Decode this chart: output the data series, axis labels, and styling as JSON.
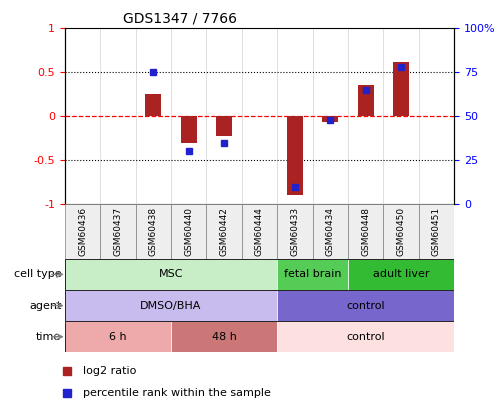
{
  "title": "GDS1347 / 7766",
  "samples": [
    "GSM60436",
    "GSM60437",
    "GSM60438",
    "GSM60440",
    "GSM60442",
    "GSM60444",
    "GSM60433",
    "GSM60434",
    "GSM60448",
    "GSM60450",
    "GSM60451"
  ],
  "log2_ratio": [
    0,
    0,
    0.25,
    -0.3,
    -0.22,
    0,
    -0.9,
    -0.07,
    0.35,
    0.62,
    0
  ],
  "percentile_rank": [
    null,
    null,
    75,
    30,
    35,
    null,
    10,
    48,
    65,
    78,
    null
  ],
  "cell_type_groups": [
    {
      "label": "MSC",
      "start": 0,
      "end": 5,
      "color": "#c8eec8"
    },
    {
      "label": "fetal brain",
      "start": 6,
      "end": 7,
      "color": "#55cc55"
    },
    {
      "label": "adult liver",
      "start": 8,
      "end": 10,
      "color": "#33bb33"
    }
  ],
  "agent_groups": [
    {
      "label": "DMSO/BHA",
      "start": 0,
      "end": 5,
      "color": "#c8bbee"
    },
    {
      "label": "control",
      "start": 6,
      "end": 10,
      "color": "#7766cc"
    }
  ],
  "time_groups": [
    {
      "label": "6 h",
      "start": 0,
      "end": 2,
      "color": "#eeaaaa"
    },
    {
      "label": "48 h",
      "start": 3,
      "end": 5,
      "color": "#cc7777"
    },
    {
      "label": "control",
      "start": 6,
      "end": 10,
      "color": "#fde0e0"
    }
  ],
  "bar_color": "#aa2222",
  "dot_color": "#2222cc",
  "ylim_left": [
    -1,
    1
  ],
  "ylim_right": [
    0,
    100
  ],
  "yticks_left": [
    -1,
    -0.5,
    0,
    0.5,
    1
  ],
  "ytick_labels_left": [
    "-1",
    "-0.5",
    "0",
    "0.5",
    "1"
  ],
  "yticks_right_vals": [
    0,
    25,
    50,
    75,
    100
  ],
  "ytick_labels_right": [
    "0",
    "25",
    "50",
    "75",
    "100%"
  ],
  "hline_dotted": [
    -0.5,
    0.5
  ],
  "row_labels": [
    "cell type",
    "agent",
    "time"
  ],
  "legend_items": [
    {
      "color": "#aa2222",
      "label": "log2 ratio"
    },
    {
      "color": "#2222cc",
      "label": "percentile rank within the sample"
    }
  ]
}
